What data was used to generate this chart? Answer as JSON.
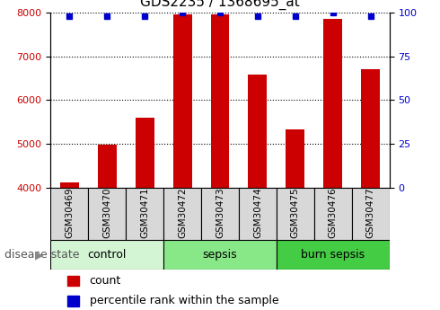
{
  "title": "GDS2235 / 1368695_at",
  "samples": [
    "GSM30469",
    "GSM30470",
    "GSM30471",
    "GSM30472",
    "GSM30473",
    "GSM30474",
    "GSM30475",
    "GSM30476",
    "GSM30477"
  ],
  "counts": [
    4120,
    4980,
    5600,
    7950,
    7950,
    6580,
    5320,
    7850,
    6700
  ],
  "percentile_ranks": [
    98,
    98,
    98,
    100,
    100,
    98,
    98,
    100,
    98
  ],
  "groups": [
    {
      "label": "control",
      "indices": [
        0,
        1,
        2
      ],
      "color": "#d4f5d4"
    },
    {
      "label": "sepsis",
      "indices": [
        3,
        4,
        5
      ],
      "color": "#88e888"
    },
    {
      "label": "burn sepsis",
      "indices": [
        6,
        7,
        8
      ],
      "color": "#44cc44"
    }
  ],
  "ylim": [
    4000,
    8000
  ],
  "yticks": [
    4000,
    5000,
    6000,
    7000,
    8000
  ],
  "y2lim": [
    0,
    100
  ],
  "y2ticks": [
    0,
    25,
    50,
    75,
    100
  ],
  "bar_color": "#cc0000",
  "dot_color": "#0000cc",
  "bar_width": 0.5,
  "background_color": "#ffffff",
  "plot_bg_color": "#ffffff",
  "grid_color": "#000000",
  "sample_box_color": "#d8d8d8",
  "legend_count_label": "count",
  "legend_pct_label": "percentile rank within the sample",
  "disease_state_label": "disease state",
  "title_fontsize": 11,
  "label_fontsize": 9,
  "tick_fontsize": 8,
  "group_label_fontsize": 9,
  "sample_label_fontsize": 7.5
}
